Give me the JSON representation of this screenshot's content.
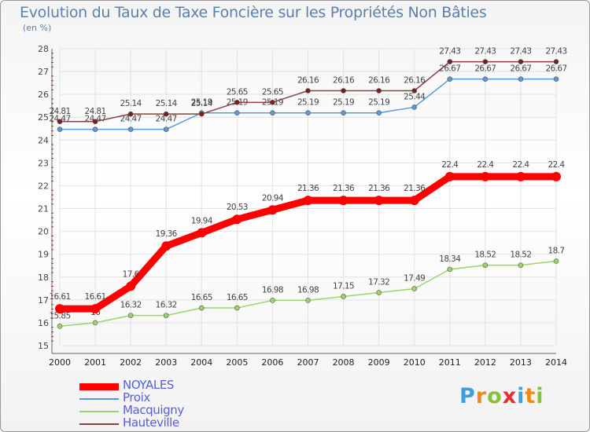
{
  "chart_data": {
    "type": "line",
    "title": "Evolution du Taux de Taxe Foncière sur les Propriétés Non Bâties",
    "subtitle": "(en %)",
    "xlabel": "",
    "ylabel": "(en %)",
    "categories": [
      "2000",
      "2001",
      "2002",
      "2003",
      "2004",
      "2005",
      "2006",
      "2007",
      "2008",
      "2009",
      "2010",
      "2011",
      "2012",
      "2013",
      "2014"
    ],
    "ylim": [
      15,
      28
    ],
    "yticks": [
      15,
      16,
      17,
      18,
      19,
      20,
      21,
      22,
      23,
      24,
      25,
      26,
      27,
      28
    ],
    "grid": true,
    "legend_position": "bottom-left",
    "series": [
      {
        "name": "NOYALES",
        "color": "#ff0000",
        "values": [
          16.61,
          16.61,
          17.6,
          19.36,
          19.94,
          20.53,
          20.94,
          21.36,
          21.36,
          21.36,
          21.36,
          22.4,
          22.4,
          22.4,
          22.4
        ],
        "labels": [
          "16.61",
          "16.61",
          "17.6",
          "19.36",
          "19.94",
          "20.53",
          "20.94",
          "21.36",
          "21.36",
          "21.36",
          "21.36",
          "22.4",
          "22.4",
          "22.4",
          "22.4"
        ]
      },
      {
        "name": "Proix",
        "color": "#5b9ad5",
        "values": [
          24.47,
          24.47,
          24.47,
          24.47,
          25.19,
          25.19,
          25.19,
          25.19,
          25.19,
          25.19,
          25.44,
          26.67,
          26.67,
          26.67,
          26.67
        ],
        "labels": [
          "24.47",
          "24.47",
          "24.47",
          "24.47",
          "25.19",
          "25.19",
          "25.19",
          "25.19",
          "25.19",
          "25.19",
          "25.44",
          "26.67",
          "26.67",
          "26.67",
          "26.67"
        ]
      },
      {
        "name": "Macquigny",
        "color": "#9ad46a",
        "values": [
          15.85,
          16,
          16.32,
          16.32,
          16.65,
          16.65,
          16.98,
          16.98,
          17.15,
          17.32,
          17.49,
          18.34,
          18.52,
          18.52,
          18.7
        ],
        "labels": [
          "15.85",
          "16",
          "16.32",
          "16.32",
          "16.65",
          "16.65",
          "16.98",
          "16.98",
          "17.15",
          "17.32",
          "17.49",
          "18.34",
          "18.52",
          "18.52",
          "18.7"
        ]
      },
      {
        "name": "Hauteville",
        "color": "#8b3f3f",
        "values": [
          24.81,
          24.81,
          25.14,
          25.14,
          25.14,
          25.65,
          25.65,
          26.16,
          26.16,
          26.16,
          26.16,
          27.43,
          27.43,
          27.43,
          27.43
        ],
        "labels": [
          "24.81",
          "24.81",
          "25.14",
          "25.14",
          "25.14",
          "25.65",
          "25.65",
          "26.16",
          "26.16",
          "26.16",
          "26.16",
          "27.43",
          "27.43",
          "27.43",
          "27.43"
        ]
      }
    ]
  },
  "brand": {
    "letters": [
      "P",
      "r",
      "o",
      "x",
      "i",
      "t",
      "i"
    ],
    "colors": [
      "#3aa0e0",
      "#f08a1a",
      "#88c040",
      "#e03030",
      "#3aa0e0",
      "#f08a1a",
      "#88c040"
    ]
  }
}
